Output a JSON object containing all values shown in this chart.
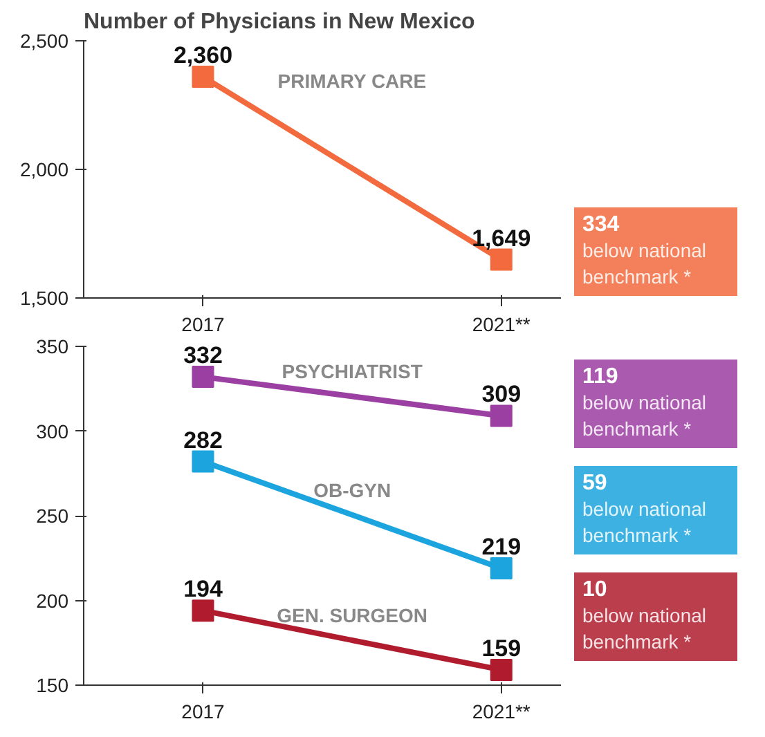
{
  "chart_data": [
    {
      "type": "line",
      "title": "Number of Physicians in New Mexico",
      "categories": [
        "2017",
        "2021**"
      ],
      "ylim": [
        1500,
        2500
      ],
      "yticks": [
        {
          "value": 1500,
          "label": "1,500"
        },
        {
          "value": 2000,
          "label": "2,000"
        },
        {
          "value": 2500,
          "label": "2,500"
        }
      ],
      "marker": "square",
      "grid": false,
      "legend": false,
      "value_labels": [
        [
          "2,360",
          "1,649"
        ]
      ],
      "series": [
        {
          "name": "PRIMARY CARE",
          "color": "#f26a3d",
          "values": [
            2360,
            1649
          ]
        }
      ],
      "annotations": [
        "334\nbelow national\nbenchmark *"
      ]
    },
    {
      "type": "line",
      "categories": [
        "2017",
        "2021**"
      ],
      "ylim": [
        150,
        350
      ],
      "yticks": [
        150,
        200,
        250,
        300,
        350
      ],
      "marker": "square",
      "grid": false,
      "legend": false,
      "data_labels": true,
      "series": [
        {
          "name": "PSYCHIATRIST",
          "color": "#9c3fa3",
          "values": [
            332,
            309
          ]
        },
        {
          "name": "OB-GYN",
          "color": "#1ba4de",
          "values": [
            282,
            219
          ]
        },
        {
          "name": "GEN. SURGEON",
          "color": "#b01c2e",
          "values": [
            194,
            159
          ]
        }
      ],
      "annotations": [
        "119\nbelow national\nbenchmark *",
        "59\nbelow national\nbenchmark *",
        "10\nbelow national\nbenchmark *"
      ]
    }
  ]
}
